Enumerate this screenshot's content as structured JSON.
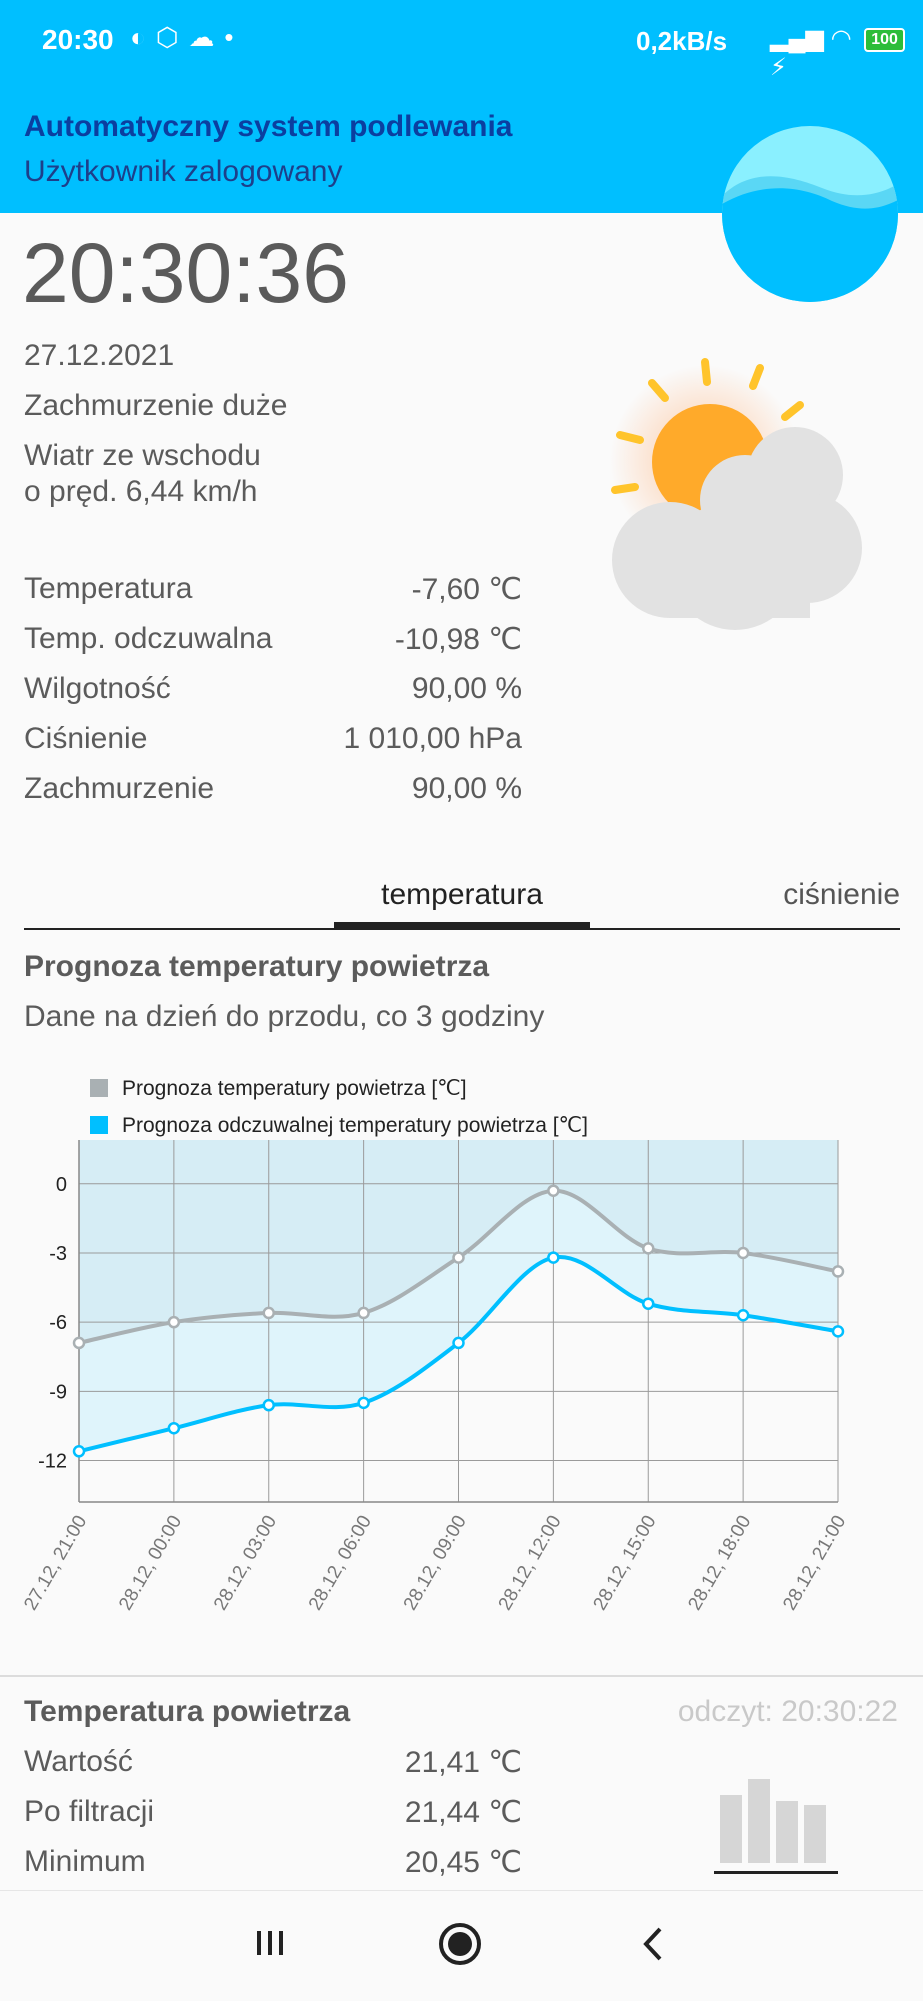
{
  "status_bar": {
    "time": "20:30",
    "left_icons": [
      "app-icon",
      "hexagon-icon",
      "cloud-icon",
      "dot-icon"
    ],
    "speed": "0,2kB/s",
    "battery": "100"
  },
  "header": {
    "title": "Automatyczny system podlewania",
    "subtitle": "Użytkownik zalogowany"
  },
  "current": {
    "clock": "20:30:36",
    "date": "27.12.2021",
    "condition": "Zachmurzenie duże",
    "wind_line1": "Wiatr ze wschodu",
    "wind_line2": "o pręd. 6,44 km/h",
    "rows": [
      {
        "label": "Temperatura",
        "value": "-7,60 ℃"
      },
      {
        "label": "Temp. odczuwalna",
        "value": "-10,98 ℃"
      },
      {
        "label": "Wilgotność",
        "value": "90,00 %"
      },
      {
        "label": "Ciśnienie",
        "value": "1 010,00 hPa"
      },
      {
        "label": "Zachmurzenie",
        "value": "90,00 %"
      }
    ]
  },
  "tabs": {
    "temperature": "temperatura",
    "pressure": "ciśnienie"
  },
  "forecast": {
    "title": "Prognoza temperatury powietrza",
    "subtitle": "Dane na dzień do przodu, co 3 godziny"
  },
  "chart_data": {
    "type": "line",
    "x": [
      "27.12, 21:00",
      "28.12, 00:00",
      "28.12, 03:00",
      "28.12, 06:00",
      "28.12, 09:00",
      "28.12, 12:00",
      "28.12, 15:00",
      "28.12, 18:00",
      "28.12, 21:00"
    ],
    "series": [
      {
        "name": "Prognoza temperatury powietrza [℃]",
        "color": "#a9b0b3",
        "values": [
          -6.9,
          -6.0,
          -5.6,
          -5.6,
          -3.2,
          -0.3,
          -2.8,
          -3.0,
          -3.8
        ]
      },
      {
        "name": "Prognoza odczuwalnej temperatury powietrza [℃]",
        "color": "#00bfff",
        "values": [
          -11.6,
          -10.6,
          -9.6,
          -9.5,
          -6.9,
          -3.2,
          -5.2,
          -5.7,
          -6.4
        ]
      }
    ],
    "yticks": [
      0,
      -3,
      -6,
      -9,
      -12
    ],
    "ylim": [
      -13.8,
      1.9
    ],
    "grid": true,
    "legend": "top-left"
  },
  "sensor": {
    "title": "Temperatura powietrza",
    "reading": "odczyt: 20:30:22",
    "rows": [
      {
        "label": "Wartość",
        "value": "21,41 ℃"
      },
      {
        "label": "Po filtracji",
        "value": "21,44 ℃"
      },
      {
        "label": "Minimum",
        "value": "20,45 ℃"
      }
    ]
  },
  "navbar": [
    "recents-icon",
    "home-icon",
    "back-icon"
  ]
}
